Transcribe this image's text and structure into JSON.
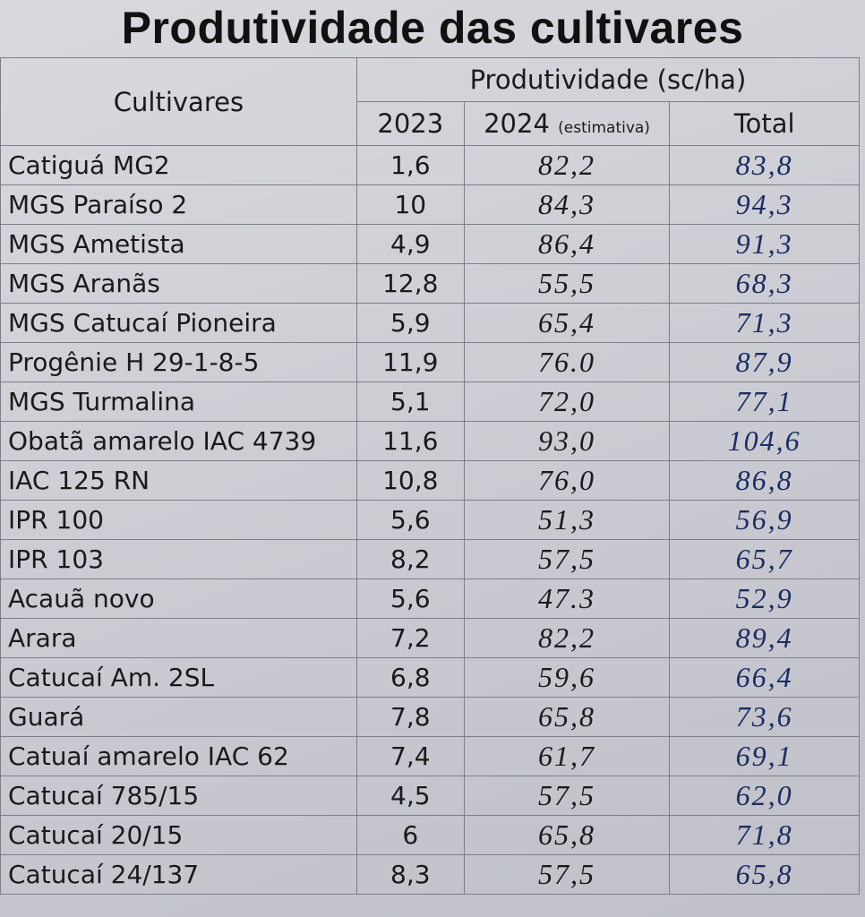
{
  "title": "Produtividade das cultivares",
  "table": {
    "header": {
      "cultivares": "Cultivares",
      "group": "Produtividade (sc/ha)",
      "year1": "2023",
      "year2": "2024",
      "year2_note": "(estimativa)",
      "total": "Total"
    },
    "rows": [
      [
        "Catiguá MG2",
        "1,6",
        "82,2",
        "83,8"
      ],
      [
        "MGS Paraíso 2",
        "10",
        "84,3",
        "94,3"
      ],
      [
        "MGS Ametista",
        "4,9",
        "86,4",
        "91,3"
      ],
      [
        "MGS Aranãs",
        "12,8",
        "55,5",
        "68,3"
      ],
      [
        "MGS Catucaí Pioneira",
        "5,9",
        "65,4",
        "71,3"
      ],
      [
        "Progênie H 29-1-8-5",
        "11,9",
        "76.0",
        "87,9"
      ],
      [
        "MGS Turmalina",
        "5,1",
        "72,0",
        "77,1"
      ],
      [
        "Obatã amarelo IAC 4739",
        "11,6",
        "93,0",
        "104,6"
      ],
      [
        "IAC 125 RN",
        "10,8",
        "76,0",
        "86,8"
      ],
      [
        "IPR 100",
        "5,6",
        "51,3",
        "56,9"
      ],
      [
        "IPR 103",
        "8,2",
        "57,5",
        "65,7"
      ],
      [
        "Acauã novo",
        "5,6",
        "47.3",
        "52,9"
      ],
      [
        "Arara",
        "7,2",
        "82,2",
        "89,4"
      ],
      [
        "Catucaí Am. 2SL",
        "6,8",
        "59,6",
        "66,4"
      ],
      [
        "Guará",
        "7,8",
        "65,8",
        "73,6"
      ],
      [
        "Catuaí amarelo IAC 62",
        "7,4",
        "61,7",
        "69,1"
      ],
      [
        "Catucaí 785/15",
        "4,5",
        "57,5",
        "62,0"
      ],
      [
        "Catucaí 20/15",
        "6",
        "65,8",
        "71,8"
      ],
      [
        "Catucaí 24/137",
        "8,3",
        "57,5",
        "65,8"
      ]
    ]
  }
}
